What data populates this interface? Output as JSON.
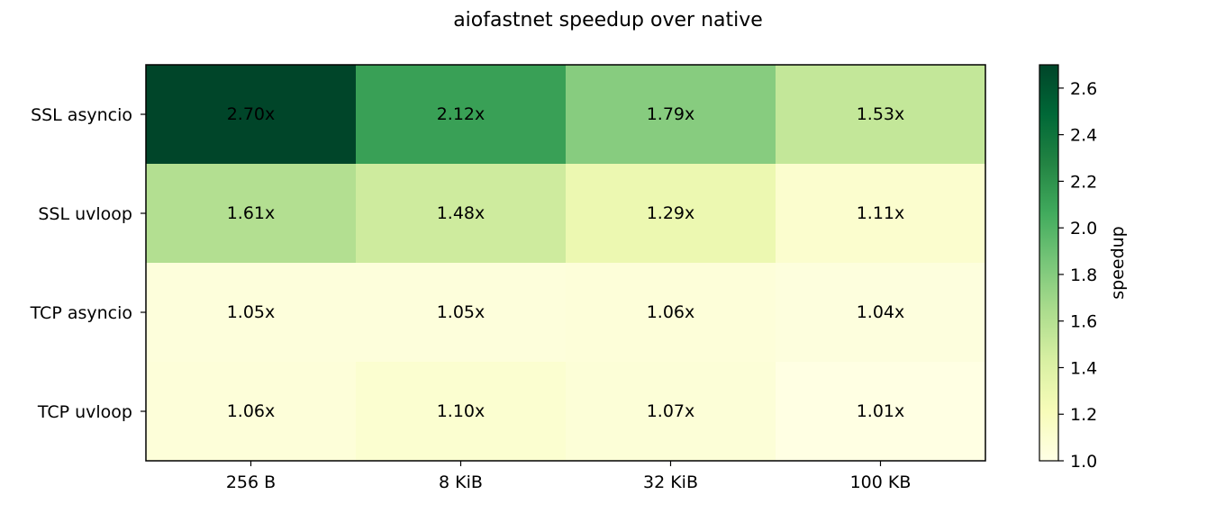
{
  "chart_data": {
    "type": "heatmap",
    "title": "aiofastnet speedup over native",
    "rows": [
      "SSL asyncio",
      "SSL uvloop",
      "TCP asyncio",
      "TCP uvloop"
    ],
    "columns": [
      "256 B",
      "8 KiB",
      "32 KiB",
      "100 KB"
    ],
    "values": [
      [
        2.7,
        2.12,
        1.79,
        1.53
      ],
      [
        1.61,
        1.48,
        1.29,
        1.11
      ],
      [
        1.05,
        1.05,
        1.06,
        1.04
      ],
      [
        1.06,
        1.1,
        1.07,
        1.01
      ]
    ],
    "cell_labels": [
      [
        "2.70x",
        "2.12x",
        "1.79x",
        "1.53x"
      ],
      [
        "1.61x",
        "1.48x",
        "1.29x",
        "1.11x"
      ],
      [
        "1.05x",
        "1.05x",
        "1.06x",
        "1.04x"
      ],
      [
        "1.06x",
        "1.10x",
        "1.07x",
        "1.01x"
      ]
    ],
    "colormap": "YlGn",
    "colorbar": {
      "label": "speedup",
      "range": [
        1.0,
        2.7
      ],
      "ticks": [
        1.0,
        1.2,
        1.4,
        1.6,
        1.8,
        2.0,
        2.2,
        2.4,
        2.6
      ],
      "tick_labels": [
        "1.0",
        "1.2",
        "1.4",
        "1.6",
        "1.8",
        "2.0",
        "2.2",
        "2.4",
        "2.6"
      ]
    }
  }
}
